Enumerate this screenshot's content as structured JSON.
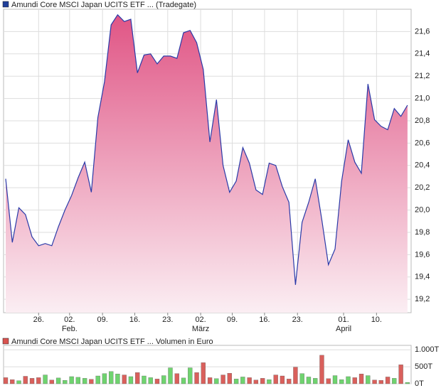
{
  "chart_data": [
    {
      "type": "area",
      "legend_color": "#1f3f99",
      "series": [
        {
          "name": "Amundi Core MSCI Japan UCITS ETF ... (Tradegate)",
          "color": "#2a3aa8",
          "values": [
            20.28,
            19.71,
            20.02,
            19.96,
            19.76,
            19.68,
            19.7,
            19.68,
            19.85,
            20.0,
            20.13,
            20.29,
            20.43,
            20.16,
            20.83,
            21.15,
            21.66,
            21.75,
            21.69,
            21.71,
            21.23,
            21.39,
            21.4,
            21.31,
            21.38,
            21.38,
            21.36,
            21.59,
            21.61,
            21.5,
            21.26,
            20.61,
            20.99,
            20.4,
            20.16,
            20.26,
            20.56,
            20.42,
            20.18,
            20.14,
            20.42,
            20.4,
            20.21,
            20.07,
            19.33,
            19.89,
            20.07,
            20.28,
            19.91,
            19.51,
            19.65,
            20.26,
            20.63,
            20.43,
            20.33,
            21.13,
            20.81,
            20.75,
            20.72,
            20.91,
            20.84,
            20.94
          ]
        }
      ],
      "fill_top": "#e05585",
      "fill_bottom": "#fbeef3",
      "ylim": [
        19.08,
        21.8
      ],
      "yticks": [
        {
          "value": 19.2,
          "label": "19,2"
        },
        {
          "value": 19.4,
          "label": "19,4"
        },
        {
          "value": 19.6,
          "label": "19,6"
        },
        {
          "value": 19.8,
          "label": "19,8"
        },
        {
          "value": 20.0,
          "label": "20,0"
        },
        {
          "value": 20.2,
          "label": "20,2"
        },
        {
          "value": 20.4,
          "label": "20,4"
        },
        {
          "value": 20.6,
          "label": "20,6"
        },
        {
          "value": 20.8,
          "label": "20,8"
        },
        {
          "value": 21.0,
          "label": "21,0"
        },
        {
          "value": 21.2,
          "label": "21,2"
        },
        {
          "value": 21.4,
          "label": "21,4"
        },
        {
          "value": 21.6,
          "label": "21,6"
        }
      ],
      "xticks": [
        {
          "value": 5,
          "label": "26."
        },
        {
          "value": 9.7,
          "label": "02."
        },
        {
          "value": 14.7,
          "label": "09."
        },
        {
          "value": 19.6,
          "label": "16."
        },
        {
          "value": 24.6,
          "label": "23."
        },
        {
          "value": 29.6,
          "label": "02."
        },
        {
          "value": 34.4,
          "label": "09."
        },
        {
          "value": 39.3,
          "label": "16."
        },
        {
          "value": 44.3,
          "label": "23."
        },
        {
          "value": 51.3,
          "label": "01."
        },
        {
          "value": 56.3,
          "label": "10."
        }
      ],
      "month_labels": [
        {
          "value": 9.7,
          "label": "Feb."
        },
        {
          "value": 29.6,
          "label": "März"
        },
        {
          "value": 51.3,
          "label": "April"
        }
      ],
      "grid": true
    },
    {
      "type": "bar",
      "legend_color": "#d9534f",
      "series": [
        {
          "name": "Amundi Core MSCI Japan UCITS ETF ... Volumen in Euro",
          "values": [
            180,
            120,
            90,
            220,
            160,
            180,
            260,
            110,
            170,
            100,
            210,
            190,
            160,
            130,
            230,
            300,
            360,
            290,
            260,
            210,
            330,
            230,
            180,
            140,
            240,
            470,
            300,
            170,
            470,
            330,
            620,
            180,
            150,
            260,
            310,
            140,
            200,
            180,
            110,
            160,
            120,
            260,
            230,
            140,
            490,
            300,
            200,
            160,
            840,
            150,
            240,
            120,
            210,
            180,
            290,
            240,
            110,
            100,
            200,
            160,
            560,
            40
          ]
        }
      ],
      "up_color": "#6fd36f",
      "down_color": "#d9605c",
      "ylim": [
        0,
        1130
      ],
      "yticks": [
        {
          "value": 0,
          "label": "0T"
        },
        {
          "value": 500,
          "label": "500T"
        },
        {
          "value": 1000,
          "label": "1.000T"
        }
      ],
      "grid": true
    }
  ]
}
